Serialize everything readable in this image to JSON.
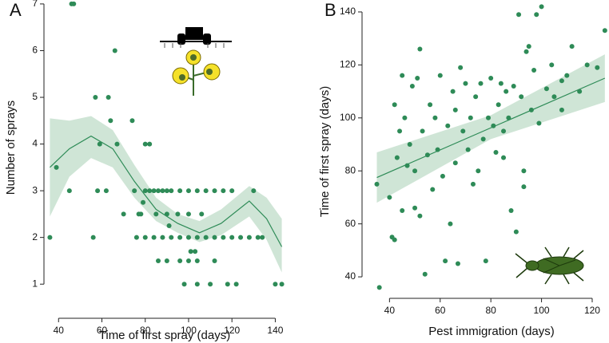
{
  "chart_data": [
    {
      "type": "scatter",
      "panel_label": "A",
      "x_label": "Time of first spray (days)",
      "y_label": "Number of sprays",
      "xlim": [
        34,
        145
      ],
      "ylim": [
        0.85,
        7.05
      ],
      "xticks": [
        40,
        60,
        80,
        100,
        120,
        140
      ],
      "yticks": [
        1,
        2,
        3,
        4,
        5,
        6,
        7
      ],
      "points": {
        "color": "#2e8b57",
        "x": [
          36,
          39,
          46,
          47,
          45,
          56,
          57,
          59,
          63,
          64,
          66,
          67,
          62,
          58,
          74,
          80,
          82,
          70,
          75,
          78,
          80,
          82,
          84,
          86,
          88,
          90,
          92,
          96,
          100,
          104,
          108,
          112,
          116,
          120,
          80,
          84,
          88,
          92,
          96,
          100,
          104,
          108,
          112,
          116,
          120,
          124,
          128,
          132,
          134,
          77,
          85,
          90,
          95,
          100,
          106,
          86,
          90,
          96,
          100,
          104,
          112,
          98,
          104,
          110,
          118,
          122,
          140,
          143,
          101,
          103,
          76,
          91,
          79,
          130
        ],
        "y": [
          2,
          3.5,
          7,
          7,
          3,
          2,
          5,
          4,
          5,
          4.5,
          6,
          4,
          3,
          3,
          4.5,
          4,
          4,
          2.5,
          3,
          2.5,
          3,
          3,
          3,
          3,
          3,
          3,
          3,
          3,
          3,
          3,
          3,
          3,
          3,
          3,
          2,
          2,
          2,
          2,
          2,
          2,
          2,
          2,
          2,
          2,
          2,
          2,
          2,
          2,
          2,
          2.5,
          2.5,
          2.5,
          2.5,
          2.5,
          2.5,
          1.5,
          1.5,
          1.5,
          1.5,
          1.5,
          1.5,
          1,
          1,
          1,
          1,
          1,
          1,
          1,
          1.7,
          1.7,
          2,
          2.25,
          2.75,
          3
        ]
      },
      "fit": {
        "color": "#2e8b57",
        "band_color": "#cfe5d6",
        "x": [
          36,
          45,
          55,
          65,
          75,
          85,
          95,
          105,
          115,
          128,
          136,
          143
        ],
        "values": [
          3.5,
          3.9,
          4.17,
          3.9,
          3.2,
          2.6,
          2.3,
          2.1,
          2.3,
          2.78,
          2.4,
          1.8
        ],
        "lower": [
          2.45,
          3.3,
          3.7,
          3.5,
          2.85,
          2.35,
          2.1,
          1.9,
          2.05,
          2.45,
          1.95,
          1.25
        ],
        "upper": [
          4.55,
          4.5,
          4.6,
          4.3,
          3.55,
          2.85,
          2.5,
          2.35,
          2.6,
          3.1,
          2.85,
          2.4
        ]
      }
    },
    {
      "type": "scatter",
      "panel_label": "B",
      "x_label": "Pest immigration (days)",
      "y_label": "Time of first spray (days)",
      "xlim": [
        32,
        126
      ],
      "ylim": [
        34,
        143
      ],
      "xticks": [
        40,
        60,
        80,
        100,
        120
      ],
      "yticks": [
        40,
        60,
        80,
        100,
        120,
        140
      ],
      "points": {
        "color": "#2e8b57",
        "x": [
          35,
          36,
          40,
          41,
          42,
          42,
          43,
          44,
          45,
          45,
          46,
          47,
          48,
          49,
          50,
          50,
          51,
          52,
          52,
          53,
          54,
          55,
          56,
          58,
          59,
          60,
          61,
          62,
          63,
          64,
          65,
          66,
          67,
          68,
          69,
          70,
          71,
          72,
          73,
          74,
          75,
          76,
          77,
          78,
          79,
          80,
          81,
          82,
          83,
          84,
          85,
          86,
          87,
          88,
          89,
          90,
          91,
          92,
          93,
          94,
          95,
          96,
          97,
          98,
          99,
          100,
          102,
          105,
          108,
          110,
          112,
          115,
          118,
          122,
          125,
          57,
          66,
          85,
          93,
          104,
          108
        ],
        "y": [
          75,
          36,
          70,
          55,
          54,
          105,
          85,
          95,
          116,
          65,
          100,
          82,
          90,
          112,
          66,
          80,
          115,
          63,
          126,
          95,
          41,
          86,
          105,
          100,
          88,
          116,
          78,
          46,
          97,
          60,
          110,
          103,
          45,
          119,
          95,
          113,
          88,
          100,
          75,
          108,
          80,
          113,
          92,
          46,
          100,
          115,
          97,
          87,
          105,
          113,
          95,
          110,
          100,
          65,
          112,
          57,
          139,
          108,
          80,
          125,
          127,
          103,
          118,
          139,
          98,
          142,
          111,
          108,
          114,
          116,
          127,
          110,
          120,
          119,
          133,
          73,
          83,
          85,
          74,
          120,
          103
        ]
      },
      "fit": {
        "color": "#2e8b57",
        "band_color": "#cfe5d6",
        "x": [
          35,
          80,
          125
        ],
        "values": [
          77.5,
          96.25,
          115
        ],
        "lower": [
          68,
          92,
          106
        ],
        "upper": [
          87,
          101,
          124
        ]
      }
    }
  ]
}
